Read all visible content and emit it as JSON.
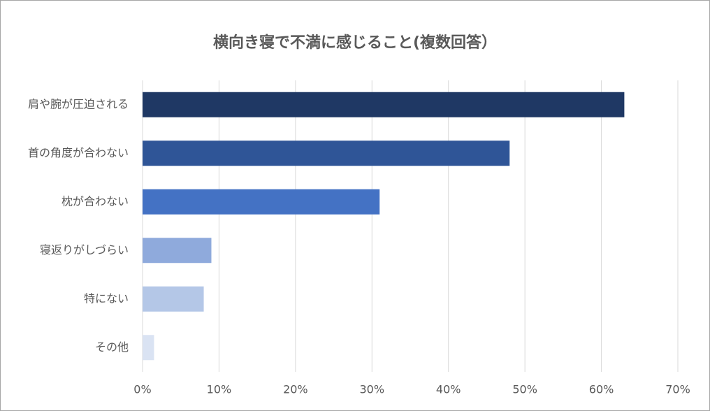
{
  "chart_data": {
    "type": "bar",
    "orientation": "horizontal",
    "title": "横向き寝で不満に感じること(複数回答）",
    "categories": [
      "肩や腕が圧迫される",
      "首の角度が合わない",
      "枕が合わない",
      "寝返りがしづらい",
      "特にない",
      "その他"
    ],
    "values": [
      63,
      48,
      31,
      9,
      8,
      1.5
    ],
    "colors": [
      "#1f3864",
      "#2f5597",
      "#4472c4",
      "#8faadc",
      "#b4c7e7",
      "#dae3f3"
    ],
    "xlim": [
      0,
      70
    ],
    "xticks": [
      {
        "value": 0,
        "label": "0%"
      },
      {
        "value": 10,
        "label": "10%"
      },
      {
        "value": 20,
        "label": "20%"
      },
      {
        "value": 30,
        "label": "30%"
      },
      {
        "value": 40,
        "label": "40%"
      },
      {
        "value": 50,
        "label": "50%"
      },
      {
        "value": 60,
        "label": "60%"
      },
      {
        "value": 70,
        "label": "70%"
      }
    ],
    "grid": true
  }
}
